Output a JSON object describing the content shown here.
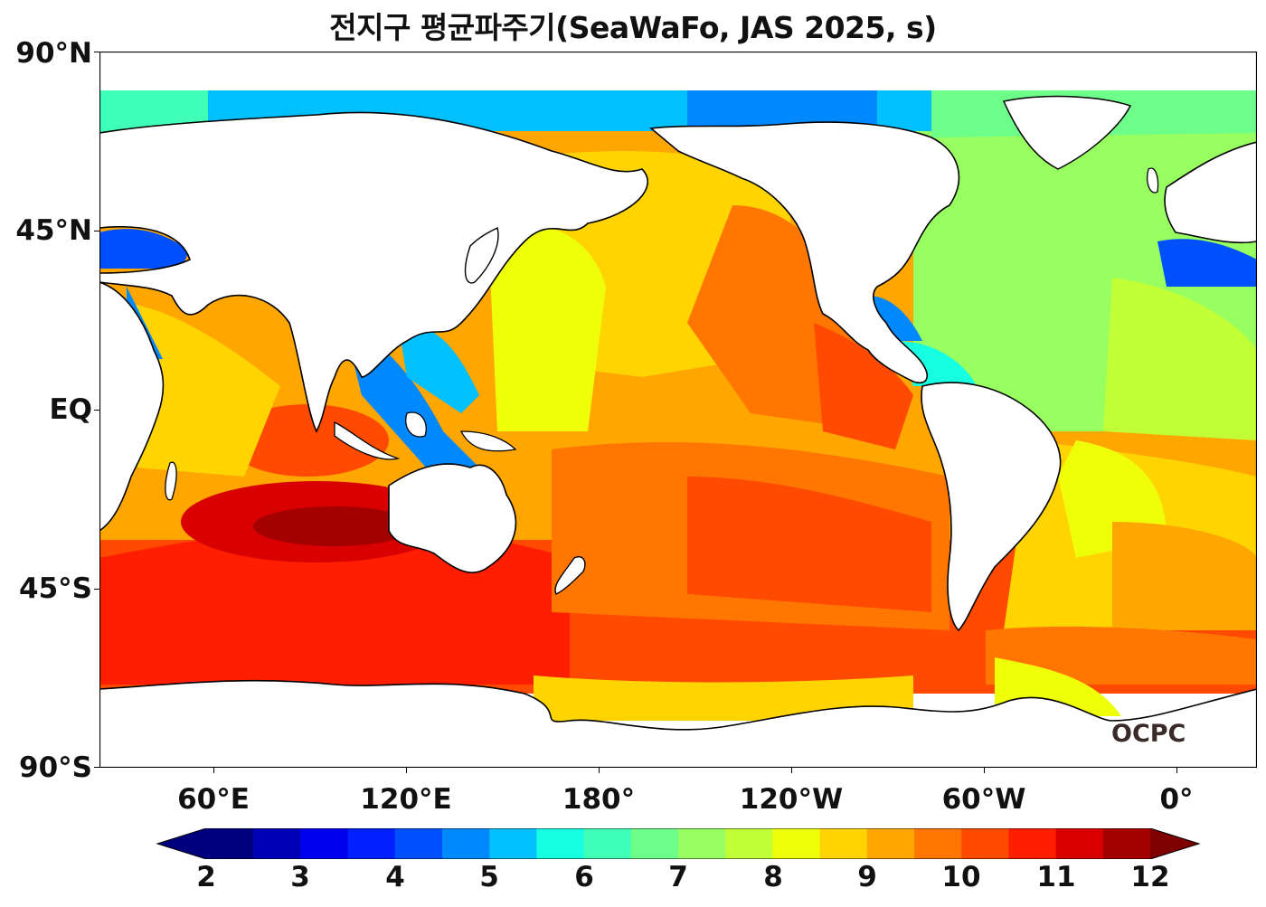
{
  "title": "전지구 평균파주기(SeaWaFo, JAS 2025, s)",
  "y_axis": {
    "ticks": [
      "90°N",
      "45°N",
      "EQ",
      "45°S",
      "90°S"
    ]
  },
  "x_axis": {
    "ticks": [
      "60°E",
      "120°E",
      "180°",
      "120°W",
      "60°W",
      "0°"
    ]
  },
  "colorbar": {
    "ticks": [
      "2",
      "3",
      "4",
      "5",
      "6",
      "7",
      "8",
      "9",
      "10",
      "11",
      "12"
    ],
    "min": 2,
    "max": 12,
    "step": 0.5,
    "extend": "both",
    "colors": [
      "#00007f",
      "#0000b6",
      "#0000ee",
      "#0020ff",
      "#0050ff",
      "#0088ff",
      "#00c0ff",
      "#16ffe1",
      "#40ffb7",
      "#6dff8a",
      "#97ff60",
      "#c1ff36",
      "#eeff09",
      "#ffd400",
      "#ffa600",
      "#ff7700",
      "#ff4a00",
      "#ff1e00",
      "#d80000",
      "#a50000"
    ],
    "under_color": "#00007f",
    "over_color": "#7f0000"
  },
  "watermark": "OCPC"
}
